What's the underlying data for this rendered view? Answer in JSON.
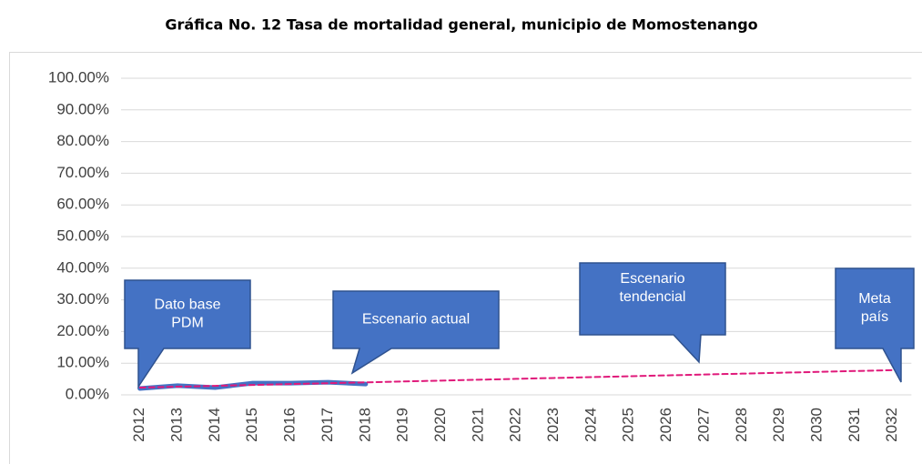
{
  "chart_data": {
    "type": "line",
    "title": "Gráfica No. 12  Tasa de mortalidad general, municipio de Momostenango",
    "categories": [
      "2012",
      "2013",
      "2014",
      "2015",
      "2016",
      "2017",
      "2018",
      "2019",
      "2020",
      "2021",
      "2022",
      "2023",
      "2024",
      "2025",
      "2026",
      "2027",
      "2028",
      "2029",
      "2030",
      "2031",
      "2032"
    ],
    "series": [
      {
        "color": "#4472c4",
        "values": [
          2.0,
          2.9,
          2.3,
          3.7,
          3.7,
          4.0,
          3.4,
          null,
          null,
          null,
          null,
          null,
          null,
          null,
          null,
          null,
          null,
          null,
          null,
          null,
          null
        ]
      },
      {
        "color": "#e0197a",
        "dashed": true,
        "values": [
          2.3,
          2.58,
          2.85,
          3.13,
          3.4,
          3.68,
          3.95,
          4.23,
          4.5,
          4.78,
          5.05,
          5.33,
          5.6,
          5.88,
          6.15,
          6.43,
          6.7,
          6.98,
          7.25,
          7.53,
          7.8
        ]
      }
    ],
    "ylim": [
      0,
      100
    ],
    "yticks": [
      {
        "value": 0,
        "label": "0.00%"
      },
      {
        "value": 10,
        "label": "10.00%"
      },
      {
        "value": 20,
        "label": "20.00%"
      },
      {
        "value": 30,
        "label": "30.00%"
      },
      {
        "value": 40,
        "label": "40.00%"
      },
      {
        "value": 50,
        "label": "50.00%"
      },
      {
        "value": 60,
        "label": "60.00%"
      },
      {
        "value": 70,
        "label": "70.00%"
      },
      {
        "value": 80,
        "label": "80.00%"
      },
      {
        "value": 90,
        "label": "90.00%"
      },
      {
        "value": 100,
        "label": "100.00%"
      }
    ],
    "grid": true,
    "annotations": [
      {
        "lines": [
          "Dato base",
          "PDM"
        ]
      },
      {
        "lines": [
          "Escenario actual"
        ]
      },
      {
        "lines": [
          "Escenario",
          "tendencial"
        ]
      },
      {
        "lines": [
          "Meta",
          "país"
        ]
      }
    ]
  }
}
